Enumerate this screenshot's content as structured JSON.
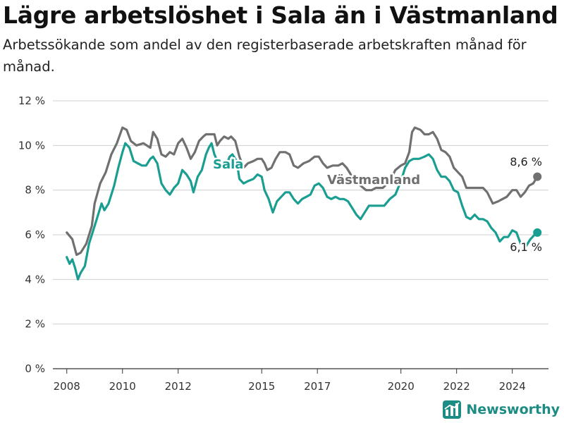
{
  "title": "Lägre arbetslöshet i Sala än i Västmanland",
  "subtitle": "Arbetssökande som andel av den registerbaserade arbetskraften månad för månad.",
  "brand": "Newsworthy",
  "colors": {
    "vastmanland": "#707070",
    "sala": "#1a9e92",
    "grid": "#cfcfcf",
    "axis": "#333333"
  },
  "chart_data": {
    "type": "line",
    "ylim": [
      0,
      12
    ],
    "yticks": [
      0,
      2,
      4,
      6,
      8,
      10,
      12
    ],
    "ytick_labels": [
      "0 %",
      "2 %",
      "4 %",
      "6 %",
      "8 %",
      "10 %",
      "12 %"
    ],
    "xlim": [
      2007.5,
      2025.3
    ],
    "xticks": [
      2008,
      2010,
      2012,
      2015,
      2017,
      2020,
      2022,
      2024
    ],
    "xtick_labels": [
      "2008",
      "2010",
      "2012",
      "2015",
      "2017",
      "2020",
      "2022",
      "2024"
    ],
    "series": [
      {
        "name": "Västmanland",
        "label": "Västmanland",
        "end_label": "8,6 %",
        "points": [
          [
            2008,
            6.1
          ],
          [
            2008.2,
            5.8
          ],
          [
            2008.35,
            5.1
          ],
          [
            2008.5,
            5.2
          ],
          [
            2008.7,
            5.6
          ],
          [
            2008.9,
            6.4
          ],
          [
            2009.0,
            7.4
          ],
          [
            2009.2,
            8.3
          ],
          [
            2009.4,
            8.8
          ],
          [
            2009.6,
            9.6
          ],
          [
            2009.8,
            10.1
          ],
          [
            2010.0,
            10.8
          ],
          [
            2010.15,
            10.7
          ],
          [
            2010.3,
            10.2
          ],
          [
            2010.5,
            10.0
          ],
          [
            2010.75,
            10.1
          ],
          [
            2011.0,
            9.9
          ],
          [
            2011.1,
            10.6
          ],
          [
            2011.25,
            10.3
          ],
          [
            2011.4,
            9.6
          ],
          [
            2011.55,
            9.5
          ],
          [
            2011.7,
            9.7
          ],
          [
            2011.85,
            9.6
          ],
          [
            2012.0,
            10.1
          ],
          [
            2012.15,
            10.3
          ],
          [
            2012.3,
            9.9
          ],
          [
            2012.45,
            9.4
          ],
          [
            2012.6,
            9.7
          ],
          [
            2012.75,
            10.2
          ],
          [
            2012.9,
            10.4
          ],
          [
            2013.0,
            10.5
          ],
          [
            2013.15,
            10.5
          ],
          [
            2013.3,
            10.5
          ],
          [
            2013.4,
            10.0
          ],
          [
            2013.5,
            10.2
          ],
          [
            2013.65,
            10.4
          ],
          [
            2013.8,
            10.3
          ],
          [
            2013.9,
            10.4
          ],
          [
            2014.05,
            10.2
          ],
          [
            2014.2,
            9.5
          ],
          [
            2014.35,
            9.0
          ],
          [
            2014.5,
            9.2
          ],
          [
            2014.7,
            9.3
          ],
          [
            2014.85,
            9.4
          ],
          [
            2015.0,
            9.4
          ],
          [
            2015.1,
            9.2
          ],
          [
            2015.2,
            8.9
          ],
          [
            2015.35,
            9.0
          ],
          [
            2015.5,
            9.4
          ],
          [
            2015.65,
            9.7
          ],
          [
            2015.85,
            9.7
          ],
          [
            2016.0,
            9.6
          ],
          [
            2016.15,
            9.1
          ],
          [
            2016.3,
            9.0
          ],
          [
            2016.5,
            9.2
          ],
          [
            2016.7,
            9.3
          ],
          [
            2016.9,
            9.5
          ],
          [
            2017.05,
            9.5
          ],
          [
            2017.2,
            9.2
          ],
          [
            2017.35,
            9.0
          ],
          [
            2017.55,
            9.1
          ],
          [
            2017.75,
            9.1
          ],
          [
            2017.9,
            9.2
          ],
          [
            2018.05,
            9.0
          ],
          [
            2018.2,
            8.7
          ],
          [
            2018.4,
            8.4
          ],
          [
            2018.55,
            8.2
          ],
          [
            2018.75,
            8.0
          ],
          [
            2018.95,
            8.0
          ],
          [
            2019.1,
            8.1
          ],
          [
            2019.35,
            8.1
          ],
          [
            2019.6,
            8.4
          ],
          [
            2019.8,
            8.9
          ],
          [
            2020.0,
            9.1
          ],
          [
            2020.15,
            9.2
          ],
          [
            2020.3,
            9.7
          ],
          [
            2020.4,
            10.6
          ],
          [
            2020.5,
            10.8
          ],
          [
            2020.7,
            10.7
          ],
          [
            2020.85,
            10.5
          ],
          [
            2021.0,
            10.5
          ],
          [
            2021.15,
            10.6
          ],
          [
            2021.3,
            10.3
          ],
          [
            2021.45,
            9.8
          ],
          [
            2021.6,
            9.7
          ],
          [
            2021.75,
            9.5
          ],
          [
            2021.9,
            9.0
          ],
          [
            2022.05,
            8.8
          ],
          [
            2022.2,
            8.6
          ],
          [
            2022.35,
            8.1
          ],
          [
            2022.55,
            8.1
          ],
          [
            2022.75,
            8.1
          ],
          [
            2022.95,
            8.1
          ],
          [
            2023.1,
            7.9
          ],
          [
            2023.3,
            7.4
          ],
          [
            2023.5,
            7.5
          ],
          [
            2023.65,
            7.6
          ],
          [
            2023.8,
            7.7
          ],
          [
            2024.0,
            8.0
          ],
          [
            2024.15,
            8.0
          ],
          [
            2024.3,
            7.7
          ],
          [
            2024.45,
            7.9
          ],
          [
            2024.6,
            8.2
          ],
          [
            2024.75,
            8.3
          ],
          [
            2024.9,
            8.6
          ]
        ]
      },
      {
        "name": "Sala",
        "label": "Sala",
        "end_label": "6,1 %",
        "points": [
          [
            2008,
            5.0
          ],
          [
            2008.1,
            4.7
          ],
          [
            2008.2,
            4.9
          ],
          [
            2008.3,
            4.5
          ],
          [
            2008.4,
            4.0
          ],
          [
            2008.5,
            4.3
          ],
          [
            2008.65,
            4.6
          ],
          [
            2008.8,
            5.6
          ],
          [
            2008.95,
            6.2
          ],
          [
            2009.1,
            6.8
          ],
          [
            2009.25,
            7.4
          ],
          [
            2009.35,
            7.1
          ],
          [
            2009.5,
            7.4
          ],
          [
            2009.7,
            8.2
          ],
          [
            2009.85,
            9.0
          ],
          [
            2010.0,
            9.7
          ],
          [
            2010.1,
            10.1
          ],
          [
            2010.25,
            9.9
          ],
          [
            2010.4,
            9.3
          ],
          [
            2010.55,
            9.2
          ],
          [
            2010.7,
            9.1
          ],
          [
            2010.85,
            9.1
          ],
          [
            2011.0,
            9.4
          ],
          [
            2011.1,
            9.5
          ],
          [
            2011.25,
            9.2
          ],
          [
            2011.4,
            8.3
          ],
          [
            2011.55,
            8.0
          ],
          [
            2011.7,
            7.8
          ],
          [
            2011.85,
            8.1
          ],
          [
            2012.0,
            8.3
          ],
          [
            2012.15,
            8.9
          ],
          [
            2012.3,
            8.7
          ],
          [
            2012.45,
            8.4
          ],
          [
            2012.55,
            7.9
          ],
          [
            2012.7,
            8.6
          ],
          [
            2012.85,
            8.9
          ],
          [
            2013.0,
            9.6
          ],
          [
            2013.1,
            9.9
          ],
          [
            2013.2,
            10.1
          ],
          [
            2013.3,
            9.6
          ],
          [
            2013.45,
            9.2
          ],
          [
            2013.6,
            9.0
          ],
          [
            2013.75,
            9.2
          ],
          [
            2013.85,
            9.5
          ],
          [
            2013.95,
            9.6
          ],
          [
            2014.1,
            9.3
          ],
          [
            2014.2,
            8.5
          ],
          [
            2014.35,
            8.3
          ],
          [
            2014.5,
            8.4
          ],
          [
            2014.7,
            8.5
          ],
          [
            2014.85,
            8.7
          ],
          [
            2015.0,
            8.6
          ],
          [
            2015.1,
            8.0
          ],
          [
            2015.25,
            7.6
          ],
          [
            2015.4,
            7.0
          ],
          [
            2015.55,
            7.5
          ],
          [
            2015.7,
            7.7
          ],
          [
            2015.85,
            7.9
          ],
          [
            2016.0,
            7.9
          ],
          [
            2016.15,
            7.6
          ],
          [
            2016.3,
            7.4
          ],
          [
            2016.45,
            7.6
          ],
          [
            2016.6,
            7.7
          ],
          [
            2016.75,
            7.8
          ],
          [
            2016.9,
            8.2
          ],
          [
            2017.05,
            8.3
          ],
          [
            2017.2,
            8.1
          ],
          [
            2017.35,
            7.7
          ],
          [
            2017.5,
            7.6
          ],
          [
            2017.65,
            7.7
          ],
          [
            2017.8,
            7.6
          ],
          [
            2017.95,
            7.6
          ],
          [
            2018.1,
            7.5
          ],
          [
            2018.25,
            7.2
          ],
          [
            2018.4,
            6.9
          ],
          [
            2018.55,
            6.7
          ],
          [
            2018.7,
            7.0
          ],
          [
            2018.85,
            7.3
          ],
          [
            2019.0,
            7.3
          ],
          [
            2019.2,
            7.3
          ],
          [
            2019.4,
            7.3
          ],
          [
            2019.6,
            7.6
          ],
          [
            2019.8,
            7.8
          ],
          [
            2020.0,
            8.4
          ],
          [
            2020.15,
            9.0
          ],
          [
            2020.3,
            9.3
          ],
          [
            2020.45,
            9.4
          ],
          [
            2020.65,
            9.4
          ],
          [
            2020.85,
            9.5
          ],
          [
            2021.0,
            9.6
          ],
          [
            2021.15,
            9.4
          ],
          [
            2021.3,
            8.9
          ],
          [
            2021.45,
            8.6
          ],
          [
            2021.6,
            8.6
          ],
          [
            2021.75,
            8.4
          ],
          [
            2021.9,
            8.0
          ],
          [
            2022.05,
            7.9
          ],
          [
            2022.2,
            7.3
          ],
          [
            2022.35,
            6.8
          ],
          [
            2022.5,
            6.7
          ],
          [
            2022.65,
            6.9
          ],
          [
            2022.8,
            6.7
          ],
          [
            2022.95,
            6.7
          ],
          [
            2023.1,
            6.6
          ],
          [
            2023.25,
            6.3
          ],
          [
            2023.4,
            6.1
          ],
          [
            2023.55,
            5.7
          ],
          [
            2023.7,
            5.9
          ],
          [
            2023.85,
            5.9
          ],
          [
            2024.0,
            6.2
          ],
          [
            2024.15,
            6.1
          ],
          [
            2024.3,
            5.6
          ],
          [
            2024.5,
            5.5
          ],
          [
            2024.65,
            5.8
          ],
          [
            2024.8,
            6.0
          ],
          [
            2024.9,
            6.1
          ]
        ]
      }
    ]
  }
}
